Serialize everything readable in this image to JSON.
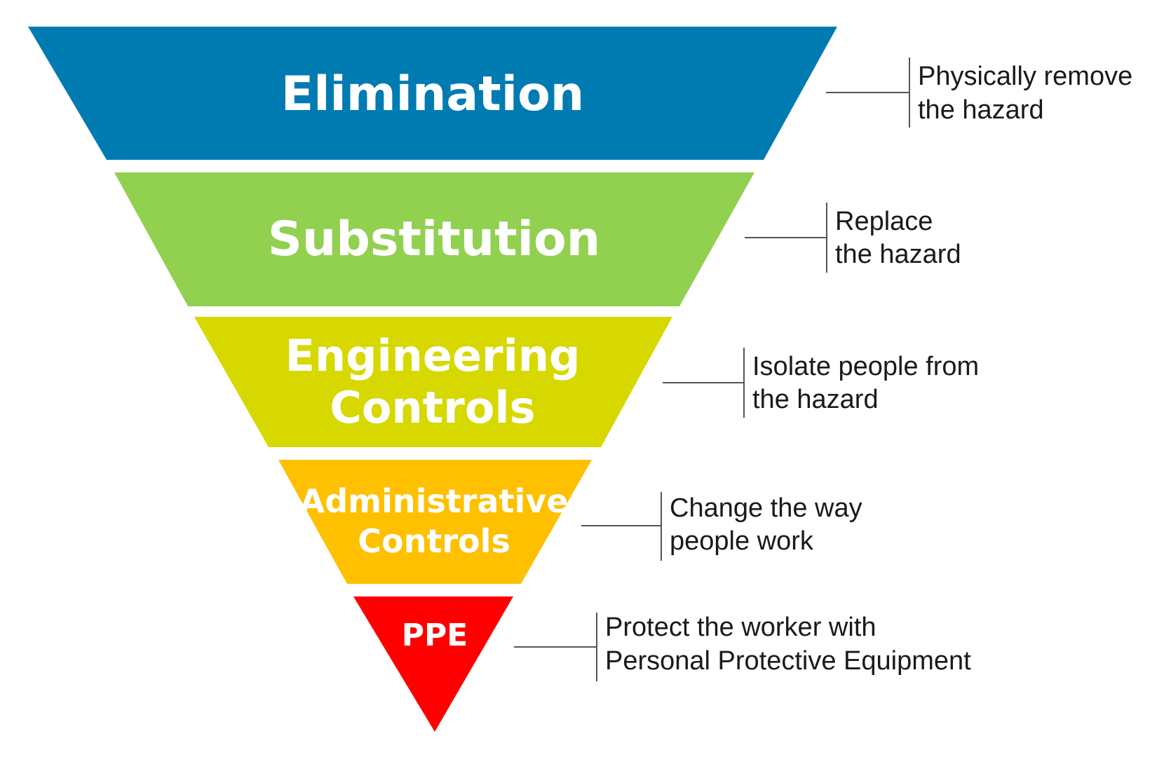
{
  "hierarchy": [
    {
      "label_lines": [
        "Elimination"
      ],
      "description_lines": [
        "Physically remove",
        "the hazard"
      ],
      "color": "#007BB2"
    },
    {
      "label_lines": [
        "Substitution"
      ],
      "description_lines": [
        "Replace",
        "the hazard"
      ],
      "color": "#92D050"
    },
    {
      "label_lines": [
        "Engineering",
        "Controls"
      ],
      "description_lines": [
        "Isolate people from",
        "the hazard"
      ],
      "color": "#D6D800"
    },
    {
      "label_lines": [
        "Administrative",
        "Controls"
      ],
      "description_lines": [
        "Change the way",
        "people work"
      ],
      "color": "#FFC000"
    },
    {
      "label_lines": [
        "PPE"
      ],
      "description_lines": [
        "Protect the worker with",
        "Personal Protective Equipment"
      ],
      "color": "#FF0000"
    }
  ]
}
